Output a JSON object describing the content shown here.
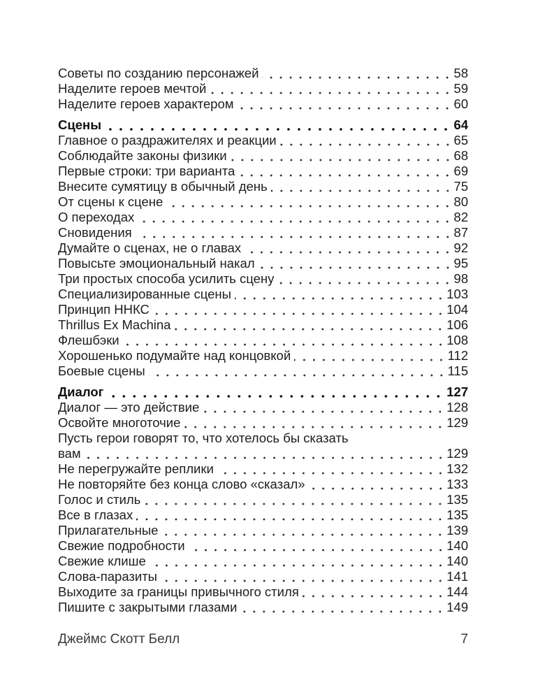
{
  "page": {
    "background_color": "#ffffff",
    "text_color": "#1e1e1e",
    "bold_color": "#111111"
  },
  "toc": {
    "entries": [
      {
        "title": "Советы по созданию персонажей",
        "page": "58",
        "bold": false
      },
      {
        "title": "Наделите героев мечтой",
        "page": "59",
        "bold": false
      },
      {
        "title": "Наделите героев характером",
        "page": "60",
        "bold": false
      },
      {
        "title": "Сцены",
        "page": "64",
        "bold": true
      },
      {
        "title": "Главное о раздражителях и реакции",
        "page": "65",
        "bold": false
      },
      {
        "title": "Соблюдайте законы физики",
        "page": "68",
        "bold": false
      },
      {
        "title": "Первые строки: три варианта",
        "page": "69",
        "bold": false
      },
      {
        "title": "Внесите сумятицу в обычный день",
        "page": "75",
        "bold": false
      },
      {
        "title": "От сцены к сцене",
        "page": "80",
        "bold": false
      },
      {
        "title": "О переходах",
        "page": "82",
        "bold": false
      },
      {
        "title": "Сновидения",
        "page": "87",
        "bold": false
      },
      {
        "title": "Думайте о сценах, не о главах",
        "page": "92",
        "bold": false
      },
      {
        "title": "Повысьте эмоциональный накал",
        "page": "95",
        "bold": false
      },
      {
        "title": "Три простых способа усилить сцену",
        "page": "98",
        "bold": false
      },
      {
        "title": "Специализированные сцены",
        "page": "103",
        "bold": false
      },
      {
        "title": "Принцип ННКС",
        "page": "104",
        "bold": false
      },
      {
        "title": "Thrillus Ex Machina",
        "page": "106",
        "bold": false
      },
      {
        "title": "Флешбэки",
        "page": "108",
        "bold": false
      },
      {
        "title": "Хорошенько подумайте над концовкой",
        "page": "112",
        "bold": false
      },
      {
        "title": "Боевые сцены",
        "page": "115",
        "bold": false
      },
      {
        "title": "Диалог",
        "page": "127",
        "bold": true
      },
      {
        "title": "Диалог — это действие",
        "page": "128",
        "bold": false
      },
      {
        "title": "Освойте многоточие",
        "page": "129",
        "bold": false
      },
      {
        "title": "Пусть герои говорят то, что хотелось бы сказать",
        "page": "",
        "bold": false
      },
      {
        "title": "вам",
        "page": "129",
        "bold": false
      },
      {
        "title": "Не перегружайте реплики",
        "page": "132",
        "bold": false
      },
      {
        "title": "Не повторяйте без конца слово «сказал»",
        "page": "133",
        "bold": false
      },
      {
        "title": "Голос и стиль",
        "page": "135",
        "bold": false
      },
      {
        "title": "Все в глазах",
        "page": "135",
        "bold": false
      },
      {
        "title": "Прилагательные",
        "page": "139",
        "bold": false
      },
      {
        "title": "Свежие подробности",
        "page": "140",
        "bold": false
      },
      {
        "title": "Свежие клише",
        "page": "140",
        "bold": false
      },
      {
        "title": "Слова-паразиты",
        "page": "141",
        "bold": false
      },
      {
        "title": "Выходите за границы привычного стиля",
        "page": "144",
        "bold": false
      },
      {
        "title": "Пишите с закрытыми глазами",
        "page": "149",
        "bold": false
      }
    ]
  },
  "footer": {
    "author": "Джеймс Скотт Белл",
    "page_number": "7"
  }
}
